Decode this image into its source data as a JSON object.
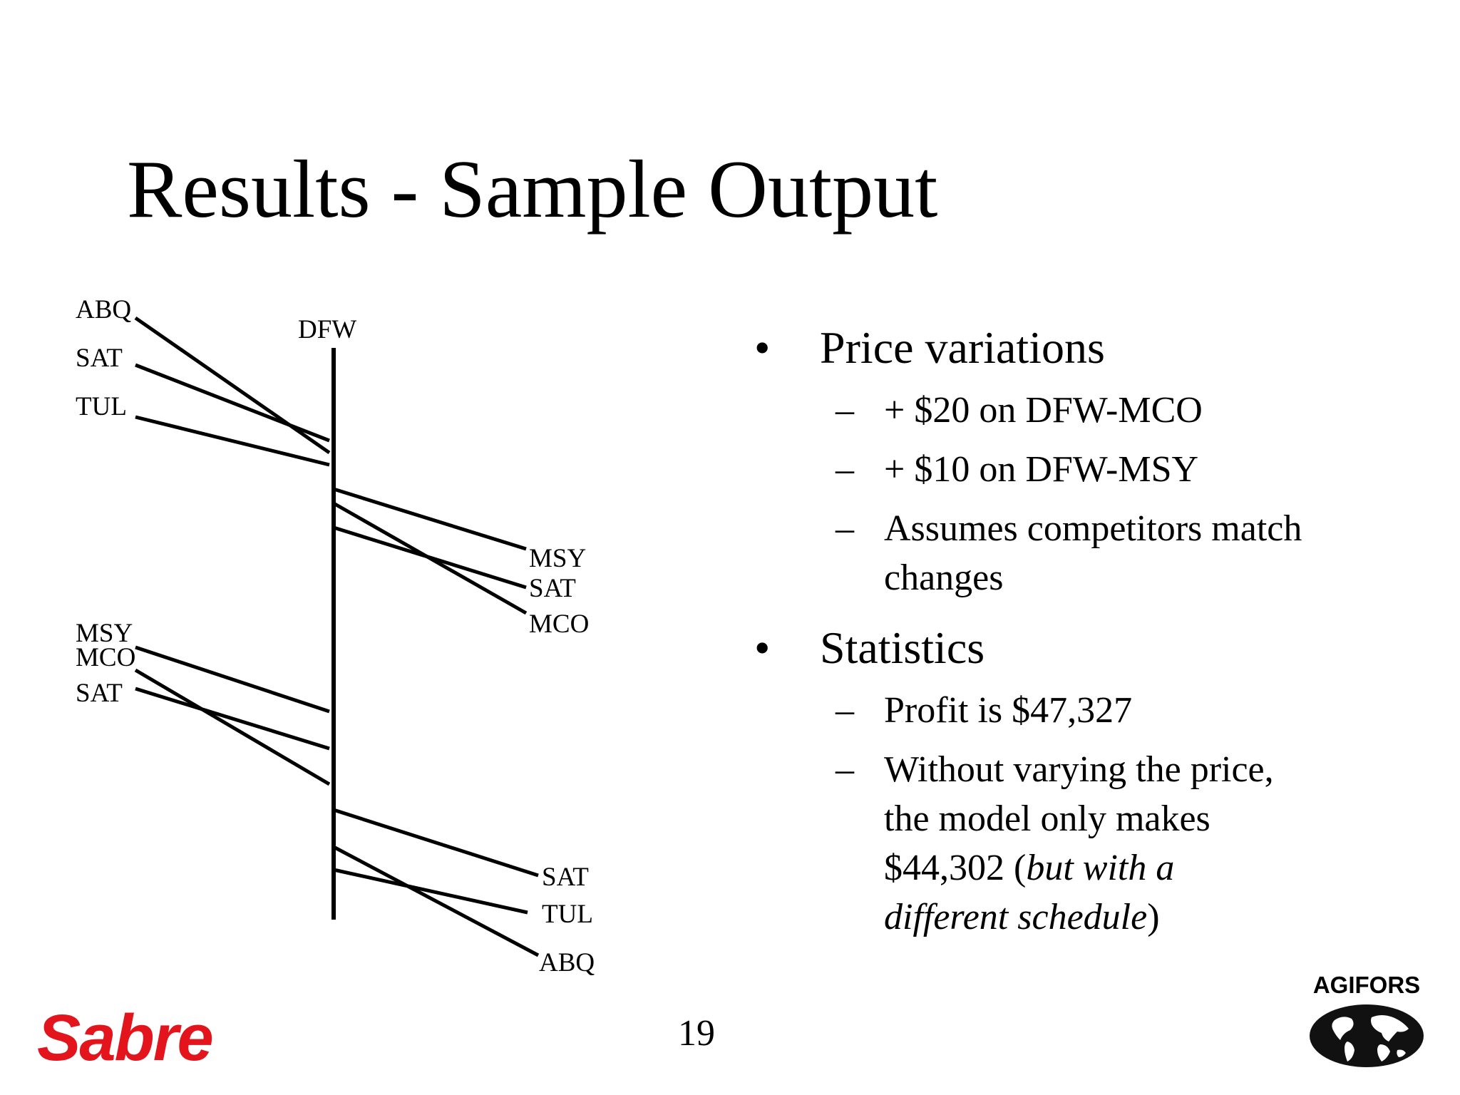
{
  "title": "Results - Sample Output",
  "diagram": {
    "hub": "DFW",
    "labels": {
      "w1_top": "ABQ",
      "w1_mid": "SAT",
      "w1_bot": "TUL",
      "e1_top": "MSY",
      "e1_mid": "SAT",
      "e1_bot": "MCO",
      "w2_top": "MSY",
      "w2_mid": "MCO",
      "w2_bot": "SAT",
      "e2_top": "SAT",
      "e2_mid": "TUL",
      "e2_bot": "ABQ"
    }
  },
  "bullets": [
    {
      "text": "Price variations",
      "sub": [
        "+ $20 on DFW-MCO",
        "+ $10 on DFW-MSY"
      ],
      "sub3_line1": "Assumes competitors match",
      "sub3_line2": "changes"
    },
    {
      "text": "Statistics",
      "sub1": "Profit is $47,327",
      "sub2_line1": "Without varying the price,",
      "sub2_line2": "the model only makes",
      "sub2_line3_a": "$44,302 (",
      "sub2_line3_b": "but with a",
      "sub2_line4_a": "different schedule",
      "sub2_line4_b": ")"
    }
  ],
  "bullet_symbol": "•",
  "dash_symbol": "–",
  "page_number": "19",
  "logos": {
    "left": "Sabre",
    "right": "AGIFORS"
  },
  "colors": {
    "sabre_red": "#e4141d",
    "text": "#000000"
  }
}
